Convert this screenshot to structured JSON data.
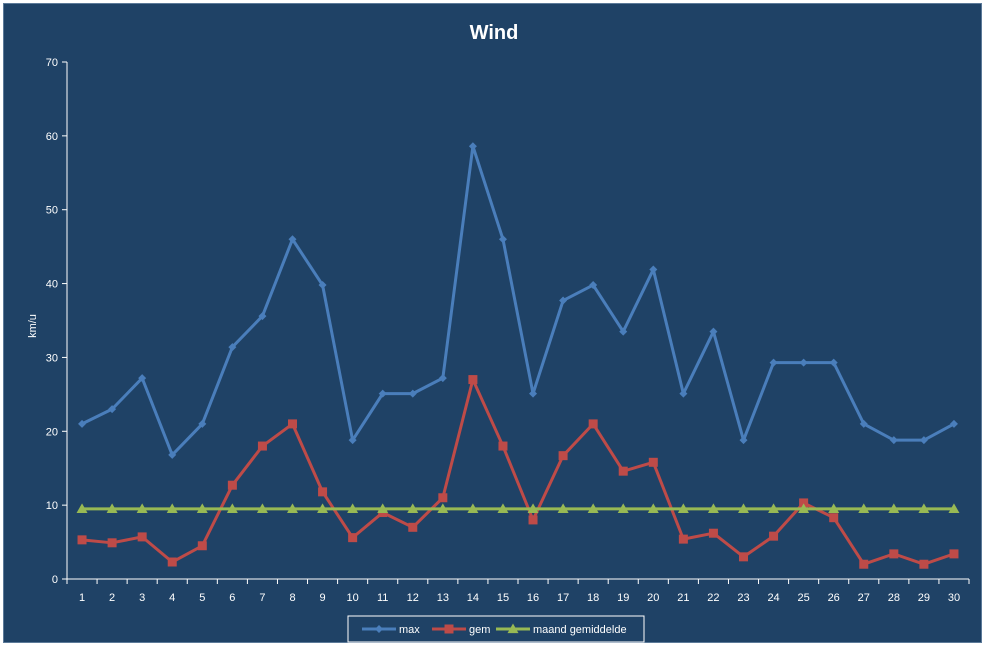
{
  "chart_data": {
    "type": "line",
    "title": "Wind",
    "xlabel": "",
    "ylabel": "km/u",
    "ylim": [
      0,
      70
    ],
    "yticks": [
      0,
      10,
      20,
      30,
      40,
      50,
      60,
      70
    ],
    "x": [
      1,
      2,
      3,
      4,
      5,
      6,
      7,
      8,
      9,
      10,
      11,
      12,
      13,
      14,
      15,
      16,
      17,
      18,
      19,
      20,
      21,
      22,
      23,
      24,
      25,
      26,
      27,
      28,
      29,
      30
    ],
    "series": [
      {
        "name": "max",
        "color": "#4a7ebb",
        "marker": "diamond",
        "values": [
          21.0,
          23.0,
          27.2,
          16.8,
          21.0,
          31.4,
          35.6,
          46.0,
          39.8,
          18.8,
          25.1,
          25.1,
          27.2,
          58.6,
          46.0,
          25.1,
          37.7,
          39.8,
          33.5,
          41.9,
          25.1,
          33.5,
          18.8,
          29.3,
          29.3,
          29.3,
          21.0,
          18.8,
          18.8,
          21.0
        ]
      },
      {
        "name": "gem",
        "color": "#be4b48",
        "marker": "square",
        "values": [
          5.3,
          4.9,
          5.7,
          2.3,
          4.5,
          12.7,
          18.0,
          21.0,
          11.8,
          5.6,
          9.0,
          7.0,
          11.0,
          27.0,
          18.0,
          8.0,
          16.7,
          21.0,
          14.6,
          15.8,
          5.4,
          6.2,
          3.0,
          5.8,
          10.3,
          8.3,
          2.0,
          3.4,
          2.0,
          3.4
        ]
      },
      {
        "name": "maand gemiddelde",
        "color": "#98b954",
        "marker": "triangle",
        "values": [
          9.5,
          9.5,
          9.5,
          9.5,
          9.5,
          9.5,
          9.5,
          9.5,
          9.5,
          9.5,
          9.5,
          9.5,
          9.5,
          9.5,
          9.5,
          9.5,
          9.5,
          9.5,
          9.5,
          9.5,
          9.5,
          9.5,
          9.5,
          9.5,
          9.5,
          9.5,
          9.5,
          9.5,
          9.5,
          9.5
        ]
      }
    ],
    "legend_position": "bottom",
    "grid": false,
    "colors": {
      "background": "#1f4266",
      "axis": "#ffffff",
      "text": "#ffffff"
    }
  }
}
